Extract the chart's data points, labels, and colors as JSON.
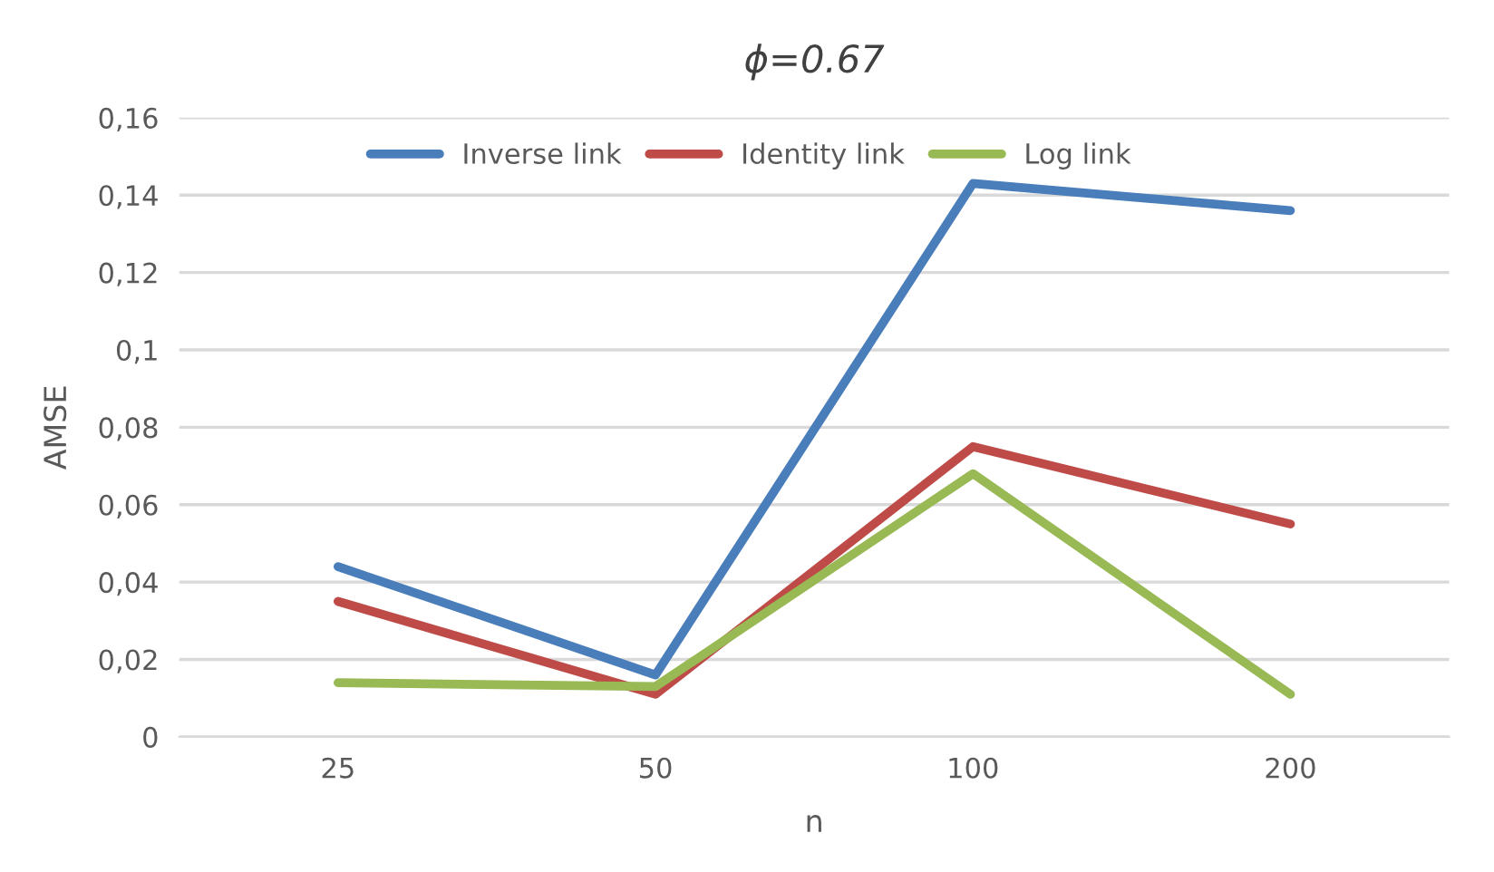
{
  "chart_data": {
    "type": "line",
    "title": "ϕ=0.67",
    "xlabel": "n",
    "ylabel": "AMSE",
    "categories": [
      "25",
      "50",
      "100",
      "200"
    ],
    "series": [
      {
        "name": "Inverse link",
        "color": "#4a7ebb",
        "values": [
          0.044,
          0.016,
          0.143,
          0.136
        ]
      },
      {
        "name": "Identity link",
        "color": "#be4b48",
        "values": [
          0.035,
          0.011,
          0.075,
          0.055
        ]
      },
      {
        "name": "Log link",
        "color": "#98b954",
        "values": [
          0.014,
          0.013,
          0.068,
          0.011
        ]
      }
    ],
    "ylim": [
      0,
      0.16
    ],
    "yticks": [
      {
        "value": 0,
        "label": "0"
      },
      {
        "value": 0.02,
        "label": "0,02"
      },
      {
        "value": 0.04,
        "label": "0,04"
      },
      {
        "value": 0.06,
        "label": "0,06"
      },
      {
        "value": 0.08,
        "label": "0,08"
      },
      {
        "value": 0.1,
        "label": "0,1"
      },
      {
        "value": 0.12,
        "label": "0,12"
      },
      {
        "value": 0.14,
        "label": "0,14"
      },
      {
        "value": 0.16,
        "label": "0,16"
      }
    ],
    "grid": "y",
    "legend": "top",
    "marker": "none",
    "line_style": "solid"
  }
}
